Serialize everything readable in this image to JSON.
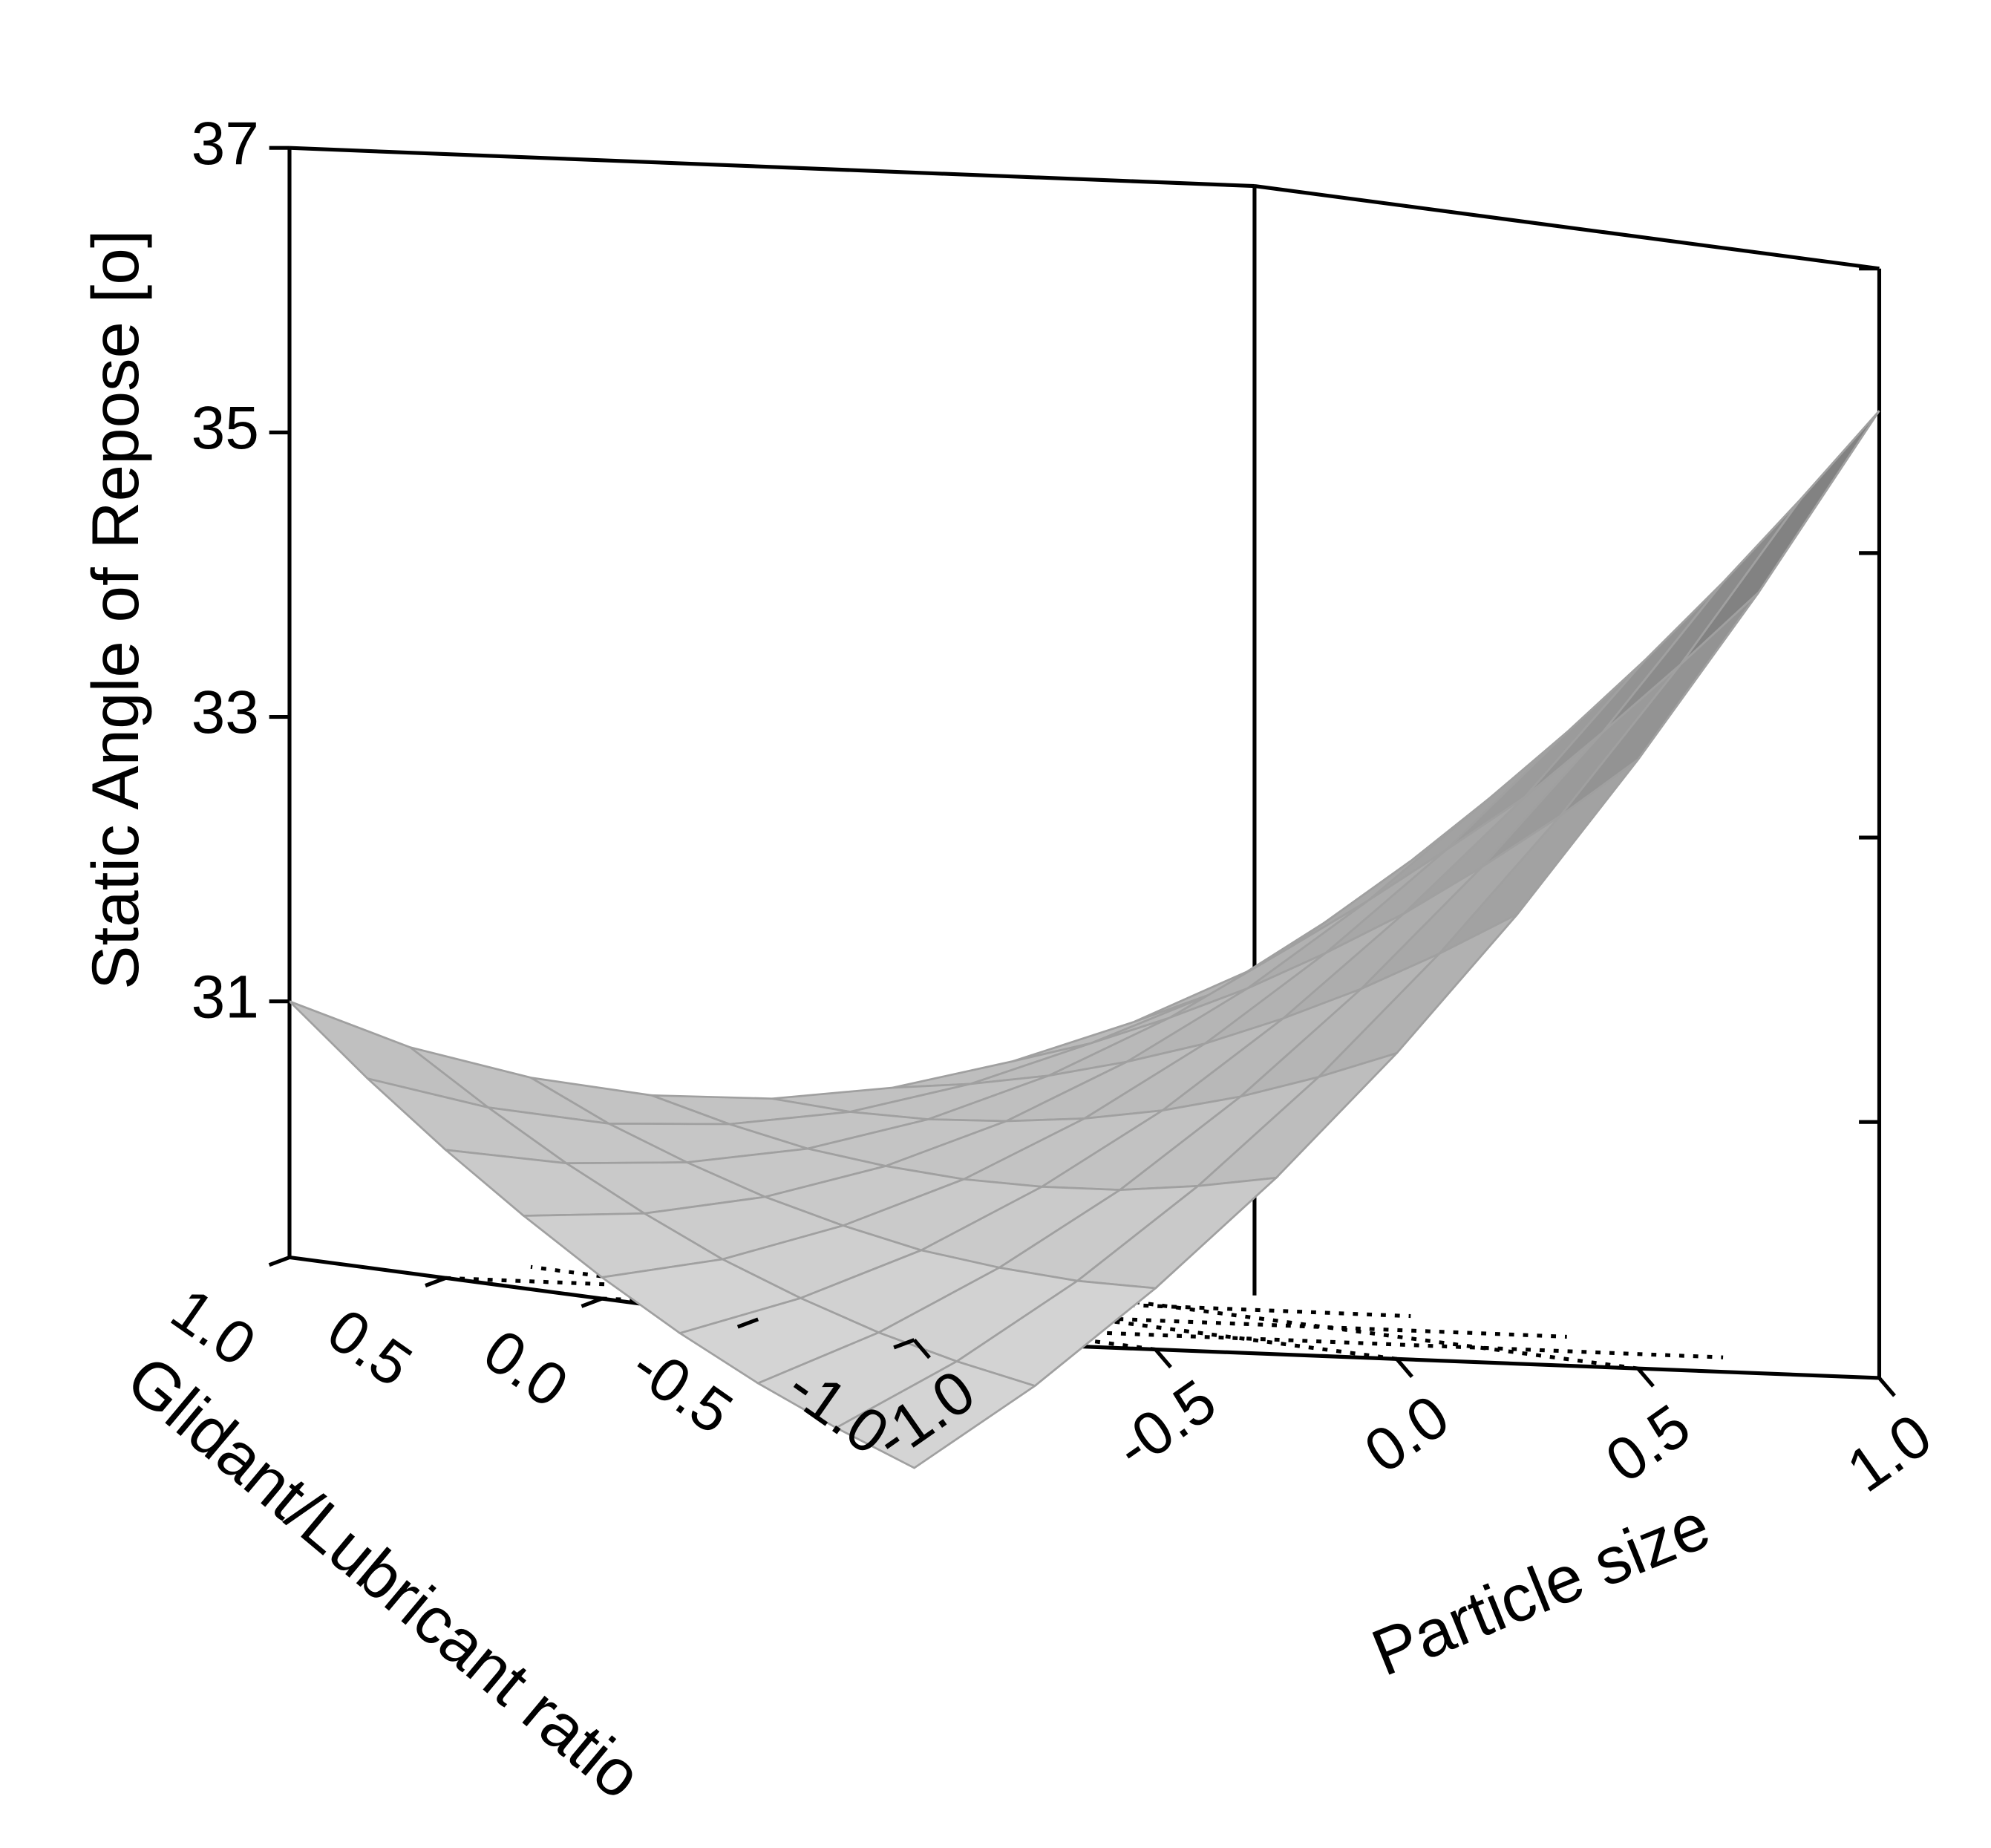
{
  "chart_data": {
    "type": "surface",
    "xlabel": "Particle size",
    "ylabel": "Glidant/Lubricant ratio",
    "zlabel": "Static Angle of Repose [o]",
    "x": [
      -1,
      -0.75,
      -0.5,
      -0.25,
      0,
      0.25,
      0.5,
      0.75,
      1
    ],
    "y": [
      -1,
      -0.75,
      -0.5,
      -0.25,
      0,
      0.25,
      0.5,
      0.75,
      1
    ],
    "z": [
      [
        28.3,
        28.91,
        29.63,
        30.44,
        31.35,
        32.36,
        33.48,
        34.69,
        36.0
      ],
      [
        28.51,
        29.01,
        29.61,
        30.31,
        31.11,
        32.01,
        33.01,
        34.11,
        35.31
      ],
      [
        28.75,
        29.14,
        29.63,
        30.21,
        30.9,
        31.69,
        32.58,
        33.56,
        34.65
      ],
      [
        29.03,
        29.31,
        29.68,
        30.16,
        30.73,
        31.41,
        32.18,
        33.03,
        34.03
      ],
      [
        29.35,
        29.51,
        29.78,
        30.14,
        30.6,
        31.16,
        31.83,
        32.59,
        33.45
      ],
      [
        29.71,
        29.76,
        29.91,
        30.16,
        30.51,
        30.96,
        31.51,
        32.16,
        32.91
      ],
      [
        30.1,
        30.04,
        30.08,
        30.21,
        30.45,
        30.79,
        31.23,
        31.76,
        32.4
      ],
      [
        30.53,
        30.36,
        30.28,
        30.31,
        30.43,
        30.66,
        30.98,
        31.36,
        31.93
      ],
      [
        31.0,
        30.71,
        30.53,
        30.44,
        30.45,
        30.56,
        30.78,
        31.09,
        31.5
      ]
    ],
    "xlim": [
      -1,
      1
    ],
    "ylim": [
      -1,
      1
    ],
    "zlim": [
      29.2,
      37
    ],
    "xticks": [
      {
        "value": -1,
        "label": "-1.0"
      },
      {
        "value": -0.5,
        "label": "-0.5"
      },
      {
        "value": 0,
        "label": "0.0"
      },
      {
        "value": 0.5,
        "label": "0.5"
      },
      {
        "value": 1,
        "label": "1.0"
      }
    ],
    "yticks": [
      {
        "value": -1,
        "label": "-1.0"
      },
      {
        "value": -0.5,
        "label": "-0.5"
      },
      {
        "value": 0,
        "label": "0.0"
      },
      {
        "value": 0.5,
        "label": "0.5"
      },
      {
        "value": 1,
        "label": "1.0"
      }
    ],
    "zticks": [
      31,
      33,
      35,
      37
    ],
    "colormap": [
      "#d4d4d4",
      "#666666"
    ],
    "floor_grid": true
  }
}
